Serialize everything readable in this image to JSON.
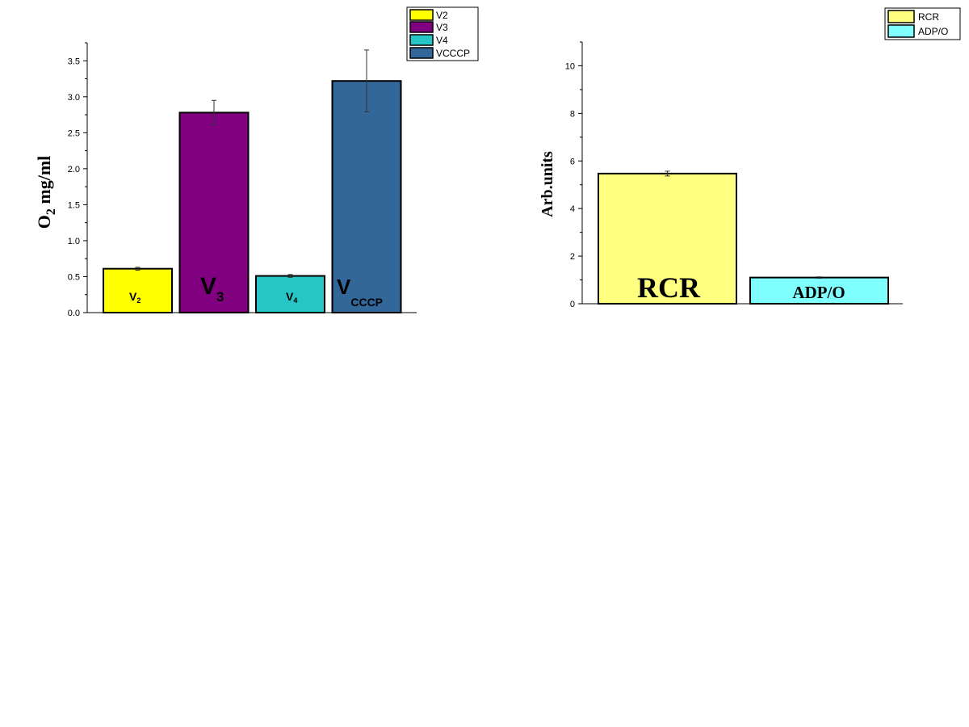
{
  "chart_data": [
    {
      "type": "bar",
      "ylabel": "O2 mg/ml",
      "ylabel_main": "O",
      "ylabel_sub": "2",
      "ylabel_rest": " mg/ml",
      "ylim": [
        0,
        3.75
      ],
      "yticks": [
        0.0,
        0.5,
        1.0,
        1.5,
        2.0,
        2.5,
        3.0,
        3.5
      ],
      "ytick_labels": [
        "0.0",
        "0.5",
        "1.0",
        "1.5",
        "2.0",
        "2.5",
        "3.0",
        "3.5"
      ],
      "grid": false,
      "legend_position": "top-right",
      "categories": [
        "V2",
        "V3",
        "V4",
        "VCCCP"
      ],
      "values": [
        0.61,
        2.78,
        0.51,
        3.22
      ],
      "errors": [
        0.02,
        0.17,
        0.02,
        0.43
      ],
      "colors": [
        "#ffff00",
        "#800080",
        "#26c6c6",
        "#336699"
      ],
      "legend": [
        "V2",
        "V3",
        "V4",
        "VCCCP"
      ],
      "bar_labels": [
        {
          "main": "V",
          "sub": "2"
        },
        {
          "main": "V",
          "sub": "3"
        },
        {
          "main": "V",
          "sub": "4"
        },
        {
          "main": "V",
          "sub": "CCCP"
        }
      ]
    },
    {
      "type": "bar",
      "ylabel": "Arb.units",
      "ylim": [
        0,
        11
      ],
      "yticks": [
        0,
        2,
        4,
        6,
        8,
        10
      ],
      "ytick_labels": [
        "0",
        "2",
        "4",
        "6",
        "8",
        "10"
      ],
      "grid": false,
      "legend_position": "top-right",
      "categories": [
        "RCR",
        "ADP/O"
      ],
      "values": [
        5.47,
        1.1
      ],
      "errors": [
        0.1,
        0.03
      ],
      "colors": [
        "#ffff80",
        "#80ffff"
      ],
      "legend": [
        "RCR",
        "ADP/O"
      ],
      "bar_labels": [
        "RCR",
        "ADP/O"
      ]
    }
  ]
}
